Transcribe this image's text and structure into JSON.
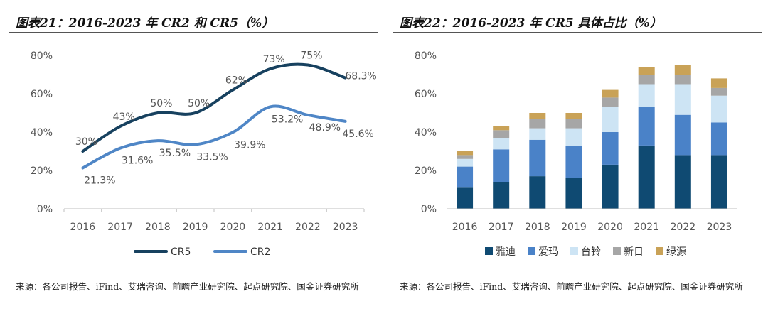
{
  "charts": [
    {
      "title": "图表21：2016-2023 年 CR2 和 CR5（%）",
      "source": "来源：各公司报告、iFind、艾瑞咨询、前瞻产业研究院、起点研究院、国金证券研究所"
    },
    {
      "title": "图表22：2016-2023 年 CR5 具体占比（%）",
      "source": "来源：各公司报告、iFind、艾瑞咨询、前瞻产业研究院、起点研究院、国金证券研究所"
    }
  ],
  "chart_data": [
    {
      "type": "line",
      "title": "图表21：2016-2023 年 CR2 和 CR5（%）",
      "x": [
        "2016",
        "2017",
        "2018",
        "2019",
        "2020",
        "2021",
        "2022",
        "2023"
      ],
      "ylim": [
        0,
        80
      ],
      "yticks": [
        "0%",
        "20%",
        "40%",
        "60%",
        "80%"
      ],
      "smooth": true,
      "grid": false,
      "legend": "bottom",
      "series": [
        {
          "name": "CR5",
          "color": "#17415f",
          "values": [
            30,
            43,
            50,
            50,
            62,
            73,
            75,
            68.3
          ],
          "labels": [
            "30%",
            "43%",
            "50%",
            "50%",
            "62%",
            "73%",
            "75%",
            "68.3%"
          ]
        },
        {
          "name": "CR2",
          "color": "#4f86c6",
          "values": [
            21.3,
            31.6,
            35.5,
            33.5,
            39.9,
            53.2,
            48.9,
            45.6
          ],
          "labels": [
            "21.3%",
            "31.6%",
            "35.5%",
            "33.5%",
            "39.9%",
            "53.2%",
            "48.9%",
            "45.6%"
          ]
        }
      ]
    },
    {
      "type": "bar",
      "stacked": true,
      "title": "图表22：2016-2023 年 CR5 具体占比（%）",
      "categories": [
        "2016",
        "2017",
        "2018",
        "2019",
        "2020",
        "2021",
        "2022",
        "2023"
      ],
      "ylim": [
        0,
        80
      ],
      "yticks": [
        "0%",
        "20%",
        "40%",
        "60%",
        "80%"
      ],
      "grid": false,
      "legend": "bottom",
      "series": [
        {
          "name": "雅迪",
          "color": "#0f4a72",
          "values": [
            11,
            14,
            17,
            16,
            23,
            33,
            28,
            28
          ]
        },
        {
          "name": "爱玛",
          "color": "#4a82c8",
          "values": [
            11,
            17,
            19,
            17,
            17,
            20,
            21,
            17
          ]
        },
        {
          "name": "台铃",
          "color": "#cde4f4",
          "values": [
            4,
            6,
            6,
            9,
            13,
            12,
            16,
            14
          ]
        },
        {
          "name": "新日",
          "color": "#a6a6a6",
          "values": [
            2,
            4,
            5,
            5,
            5,
            5,
            5,
            4
          ]
        },
        {
          "name": "绿源",
          "color": "#c9a257",
          "values": [
            2,
            2,
            3,
            3,
            4,
            4,
            5,
            5
          ]
        }
      ]
    }
  ]
}
